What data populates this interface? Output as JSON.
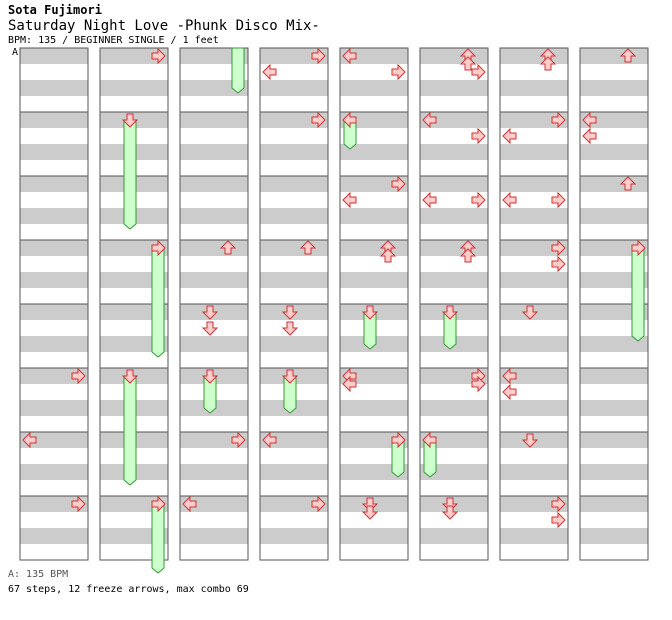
{
  "header": {
    "artist": "Sota Fujimori",
    "title": "Saturday Night Love -Phunk Disco Mix-",
    "info": "BPM: 135 / BEGINNER SINGLE / 1 feet"
  },
  "bpm_marker": {
    "label": "A"
  },
  "footer": {
    "bpm_text": "A: 135 BPM",
    "steps_text": "67 steps, 12 freeze arrows, max combo 69"
  },
  "colors": {
    "stripe": "#cccccc",
    "arrow_fill": "#ffcccc",
    "arrow_stroke": "#cc3333",
    "freeze_fill": "#ccffcc",
    "freeze_stroke": "#339933",
    "border": "#555555"
  },
  "chart_data": {
    "type": "table",
    "columns": 8,
    "measures_per_column": 8,
    "beats_per_measure": 4,
    "notes": [
      {
        "col": 1,
        "m": 0,
        "b": 0,
        "dir": "right"
      },
      {
        "col": 2,
        "m": 0,
        "b": 0,
        "dir": "freeze-end",
        "lane": "up"
      },
      {
        "col": 3,
        "m": 0,
        "b": 0,
        "dir": "right"
      },
      {
        "col": 3,
        "m": 0,
        "b": 1,
        "dir": "left"
      },
      {
        "col": 3,
        "m": 0,
        "b": 1,
        "dir": "right"
      },
      {
        "col": 4,
        "m": 0,
        "b": 0,
        "dir": "left"
      },
      {
        "col": 5,
        "m": 0,
        "b": 0,
        "dir": "up"
      },
      {
        "col": 5,
        "m": 0,
        "b": 0.5,
        "dir": "up"
      },
      {
        "col": 6,
        "m": 0,
        "b": 0,
        "dir": "up"
      },
      {
        "col": 6,
        "m": 0,
        "b": 0.5,
        "dir": "up"
      },
      {
        "col": 7,
        "m": 0,
        "b": 0,
        "dir": "up"
      }
    ]
  }
}
